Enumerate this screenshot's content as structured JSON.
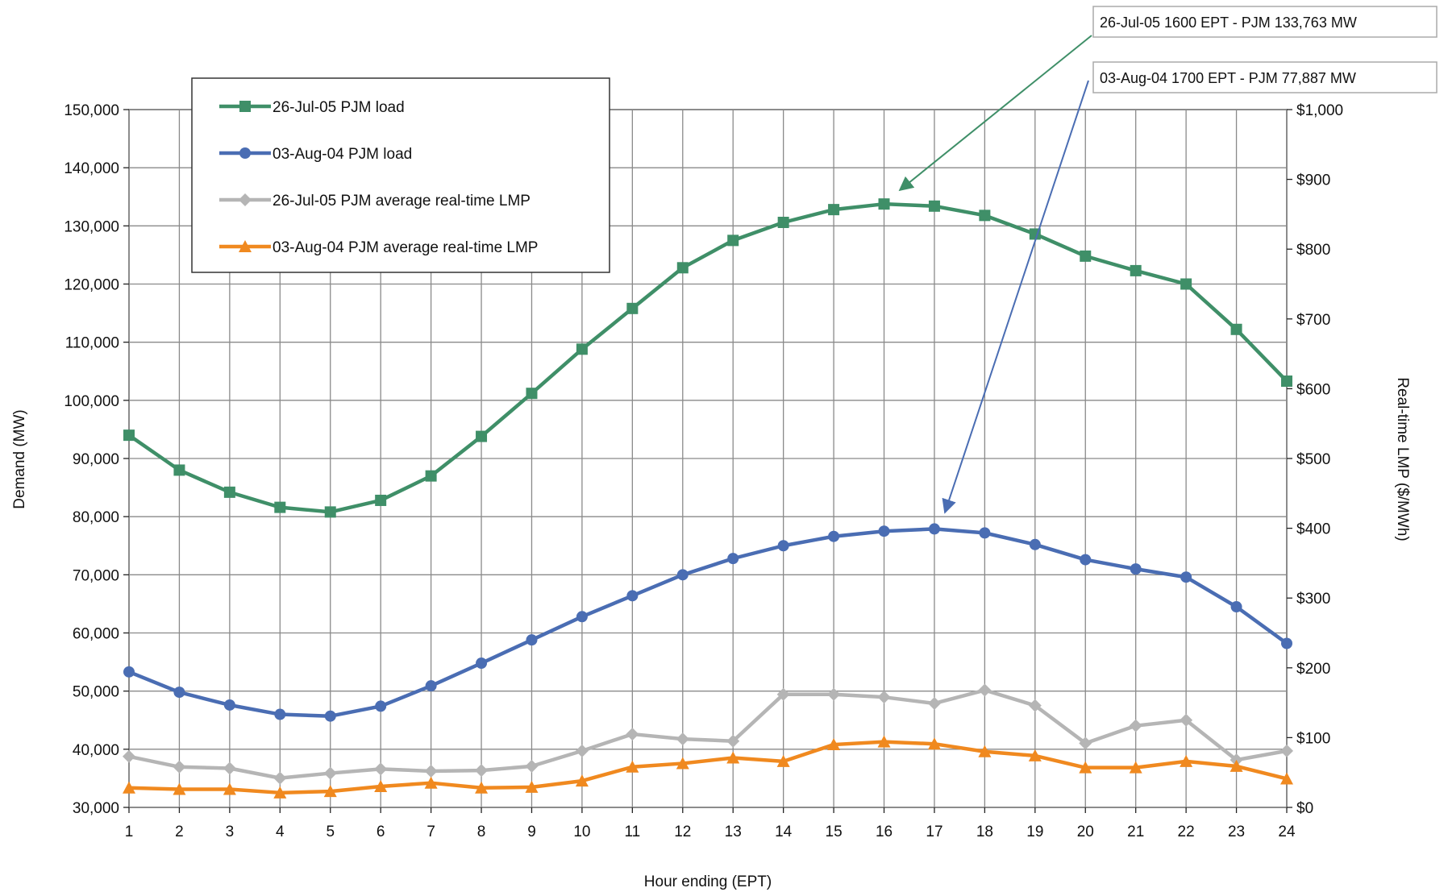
{
  "chart_data": {
    "type": "line",
    "title": "",
    "xlabel": "Hour ending (EPT)",
    "ylabel_left": "Demand (MW)",
    "ylabel_right": "Real-time LMP ($/MWh)",
    "x": [
      1,
      2,
      3,
      4,
      5,
      6,
      7,
      8,
      9,
      10,
      11,
      12,
      13,
      14,
      15,
      16,
      17,
      18,
      19,
      20,
      21,
      22,
      23,
      24
    ],
    "ylim_left": [
      30000,
      150000
    ],
    "ylim_right": [
      0,
      1000
    ],
    "left_ticks": [
      "30,000",
      "40,000",
      "50,000",
      "60,000",
      "70,000",
      "80,000",
      "90,000",
      "100,000",
      "110,000",
      "120,000",
      "130,000",
      "140,000",
      "150,000"
    ],
    "right_ticks": [
      "$0",
      "$100",
      "$200",
      "$300",
      "$400",
      "$500",
      "$600",
      "$700",
      "$800",
      "$900",
      "$1,000"
    ],
    "x_ticks": [
      "1",
      "2",
      "3",
      "4",
      "5",
      "6",
      "7",
      "8",
      "9",
      "10",
      "11",
      "12",
      "13",
      "14",
      "15",
      "16",
      "17",
      "18",
      "19",
      "20",
      "21",
      "22",
      "23",
      "24"
    ],
    "grid": true,
    "legend_position": "top-left",
    "series": [
      {
        "name": "26-Jul-05 PJM load",
        "axis": "left",
        "color": "#3f8f68",
        "marker": "square",
        "values": [
          94000,
          88000,
          84200,
          81600,
          80800,
          82800,
          87000,
          93800,
          101200,
          108800,
          115800,
          122800,
          127500,
          130600,
          132800,
          133763,
          133400,
          131800,
          128600,
          124800,
          122300,
          120000,
          112200,
          103300
        ]
      },
      {
        "name": "03-Aug-04 PJM load",
        "axis": "left",
        "color": "#4a6db3",
        "marker": "circle",
        "values": [
          53300,
          49800,
          47600,
          46000,
          45700,
          47400,
          50900,
          54800,
          58800,
          62800,
          66400,
          70000,
          72800,
          75000,
          76600,
          77500,
          77887,
          77200,
          75200,
          72600,
          71000,
          69600,
          64500,
          58200
        ]
      },
      {
        "name": "26-Jul-05 PJM average real-time LMP",
        "axis": "right",
        "color": "#b5b5b5",
        "marker": "diamond",
        "values": [
          73,
          58,
          56,
          42,
          49,
          55,
          52,
          53,
          59,
          81,
          105,
          98,
          95,
          162,
          162,
          158,
          149,
          168,
          146,
          92,
          117,
          125,
          68,
          81
        ]
      },
      {
        "name": "03-Aug-04 PJM average real-time LMP",
        "axis": "right",
        "color": "#f0891f",
        "marker": "triangle",
        "values": [
          28,
          26,
          26,
          21,
          23,
          30,
          35,
          28,
          29,
          38,
          58,
          63,
          71,
          66,
          90,
          94,
          91,
          80,
          74,
          57,
          57,
          66,
          59,
          41
        ]
      }
    ],
    "annotations": [
      {
        "text": "26-Jul-05 1600 EPT - PJM 133,763 MW",
        "target_x": 16,
        "target_value": 133763
      },
      {
        "text": "03-Aug-04 1700 EPT - PJM 77,887 MW",
        "target_x": 17,
        "target_value": 77887
      }
    ]
  }
}
